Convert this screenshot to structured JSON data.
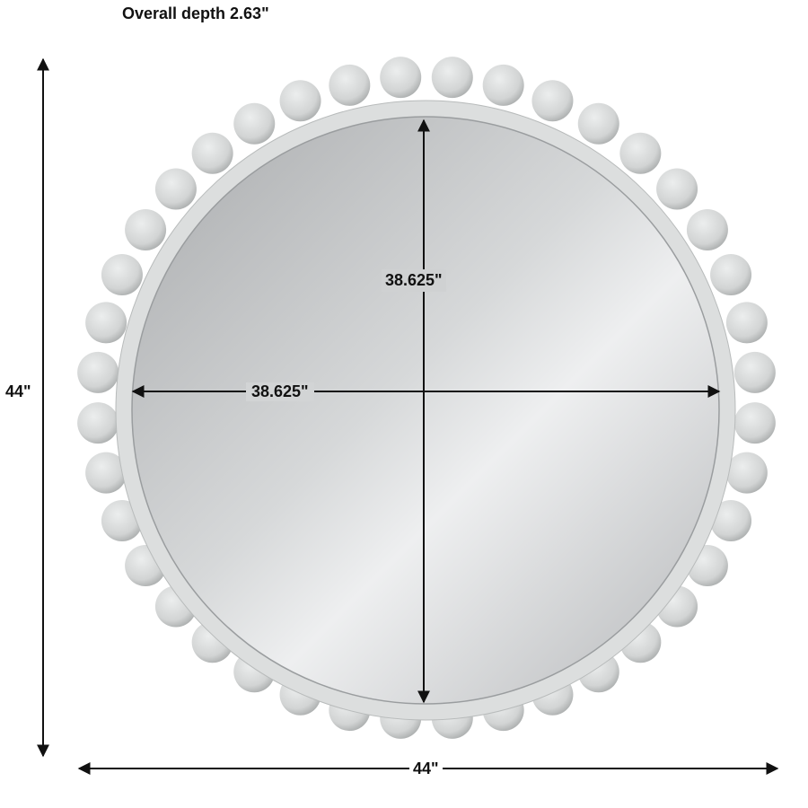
{
  "labels": {
    "depth": "Overall depth 2.63\"",
    "overall_height": "44\"",
    "overall_width": "44\"",
    "mirror_height": "38.625\"",
    "mirror_width": "38.625\""
  },
  "colors": {
    "frame": "#d9dbdb",
    "ball": "#d0d2d2",
    "mirror": "#c4c6c8",
    "dimension_line": "#111111"
  },
  "product": {
    "ball_count": 40
  }
}
